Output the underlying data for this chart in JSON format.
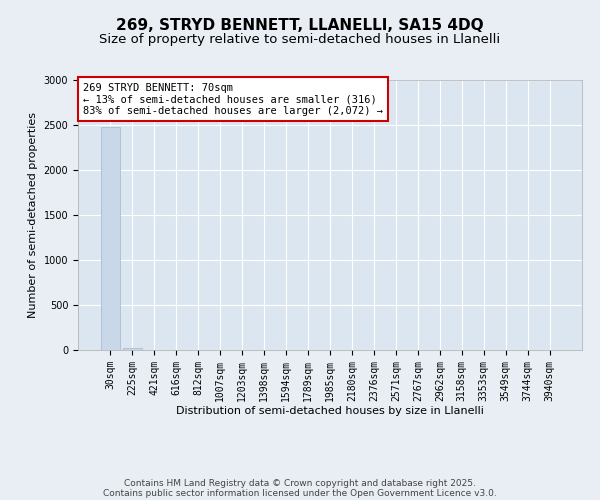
{
  "title": "269, STRYD BENNETT, LLANELLI, SA15 4DQ",
  "subtitle": "Size of property relative to semi-detached houses in Llanelli",
  "xlabel": "Distribution of semi-detached houses by size in Llanelli",
  "ylabel": "Number of semi-detached properties",
  "bar_color": "#c8d8e8",
  "bar_edge_color": "#a0b8cc",
  "categories": [
    "30sqm",
    "225sqm",
    "421sqm",
    "616sqm",
    "812sqm",
    "1007sqm",
    "1203sqm",
    "1398sqm",
    "1594sqm",
    "1789sqm",
    "1985sqm",
    "2180sqm",
    "2376sqm",
    "2571sqm",
    "2767sqm",
    "2962sqm",
    "3158sqm",
    "3353sqm",
    "3549sqm",
    "3744sqm",
    "3940sqm"
  ],
  "values": [
    2480,
    20,
    2,
    1,
    1,
    0,
    0,
    0,
    0,
    0,
    0,
    0,
    0,
    0,
    0,
    0,
    0,
    0,
    0,
    0,
    0
  ],
  "ylim": [
    0,
    3000
  ],
  "yticks": [
    0,
    500,
    1000,
    1500,
    2000,
    2500,
    3000
  ],
  "annotation_text": "269 STRYD BENNETT: 70sqm\n← 13% of semi-detached houses are smaller (316)\n83% of semi-detached houses are larger (2,072) →",
  "annotation_box_color": "#ffffff",
  "annotation_box_edge_color": "#cc0000",
  "footer_line1": "Contains HM Land Registry data © Crown copyright and database right 2025.",
  "footer_line2": "Contains public sector information licensed under the Open Government Licence v3.0.",
  "background_color": "#e8eef4",
  "plot_background_color": "#dce6f0",
  "grid_color": "#ffffff",
  "title_fontsize": 11,
  "subtitle_fontsize": 9.5,
  "axis_label_fontsize": 8,
  "tick_fontsize": 7,
  "annotation_fontsize": 7.5,
  "footer_fontsize": 6.5
}
